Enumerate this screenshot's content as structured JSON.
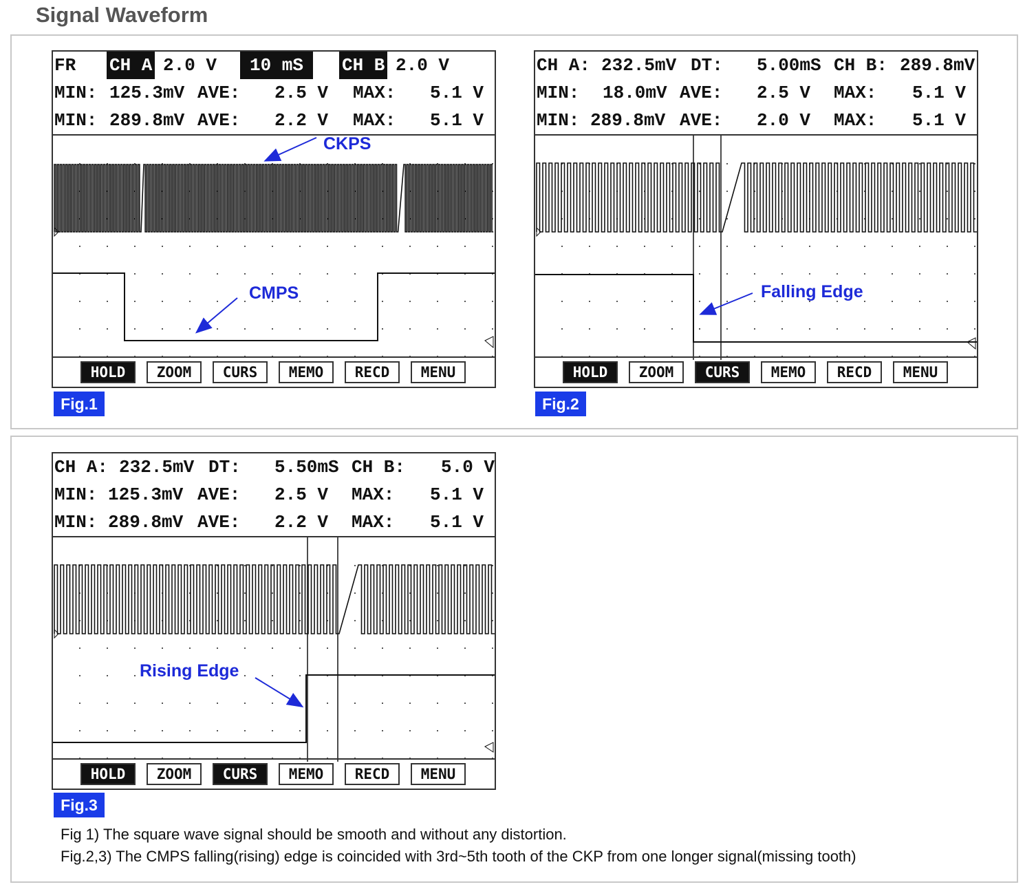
{
  "title": "Signal Waveform",
  "figures": [
    {
      "label": "Fig.1",
      "readout": {
        "row1": [
          "FR",
          "CH A",
          "2.0 V",
          "10 mS",
          "CH B",
          "2.0 V"
        ],
        "row2": [
          "MIN:",
          "125.3mV",
          "AVE:",
          "2.5 V",
          "MAX:",
          "5.1 V"
        ],
        "row3": [
          "MIN:",
          "289.8mV",
          "AVE:",
          "2.2 V",
          "MAX:",
          "5.1 V"
        ]
      },
      "annotations": [
        "CKPS",
        "CMPS"
      ],
      "softkeys": [
        {
          "label": "HOLD",
          "active": true
        },
        {
          "label": "ZOOM",
          "active": false
        },
        {
          "label": "CURS",
          "active": false
        },
        {
          "label": "MEMO",
          "active": false
        },
        {
          "label": "RECD",
          "active": false
        },
        {
          "label": "MENU",
          "active": false
        }
      ]
    },
    {
      "label": "Fig.2",
      "readout": {
        "row1": [
          "CH A:",
          "232.5mV",
          "DT:",
          "5.00mS",
          "CH B:",
          "289.8mV"
        ],
        "row2": [
          "MIN:",
          "18.0mV",
          "AVE:",
          "2.5 V",
          "MAX:",
          "5.1 V"
        ],
        "row3": [
          "MIN:",
          "289.8mV",
          "AVE:",
          "2.0 V",
          "MAX:",
          "5.1 V"
        ]
      },
      "annotations": [
        "Falling Edge"
      ],
      "softkeys": [
        {
          "label": "HOLD",
          "active": true
        },
        {
          "label": "ZOOM",
          "active": false
        },
        {
          "label": "CURS",
          "active": true
        },
        {
          "label": "MEMO",
          "active": false
        },
        {
          "label": "RECD",
          "active": false
        },
        {
          "label": "MENU",
          "active": false
        }
      ]
    },
    {
      "label": "Fig.3",
      "readout": {
        "row1": [
          "CH A:",
          "232.5mV",
          "DT:",
          "5.50mS",
          "CH B:",
          "5.0 V"
        ],
        "row2": [
          "MIN:",
          "125.3mV",
          "AVE:",
          "2.5 V",
          "MAX:",
          "5.1 V"
        ],
        "row3": [
          "MIN:",
          "289.8mV",
          "AVE:",
          "2.2 V",
          "MAX:",
          "5.1 V"
        ]
      },
      "annotations": [
        "Rising Edge"
      ],
      "softkeys": [
        {
          "label": "HOLD",
          "active": true
        },
        {
          "label": "ZOOM",
          "active": false
        },
        {
          "label": "CURS",
          "active": true
        },
        {
          "label": "MEMO",
          "active": false
        },
        {
          "label": "RECD",
          "active": false
        },
        {
          "label": "MENU",
          "active": false
        }
      ]
    }
  ],
  "captions": [
    "Fig 1) The square wave signal should be smooth and without any distortion.",
    "Fig.2,3) The CMPS falling(rising) edge is coincided with 3rd~5th tooth of the CKP from one longer signal(missing tooth)"
  ],
  "colors": {
    "annotation": "#1d2ad8",
    "fig_label_bg": "#1a3ce8",
    "trace": "#111111"
  }
}
